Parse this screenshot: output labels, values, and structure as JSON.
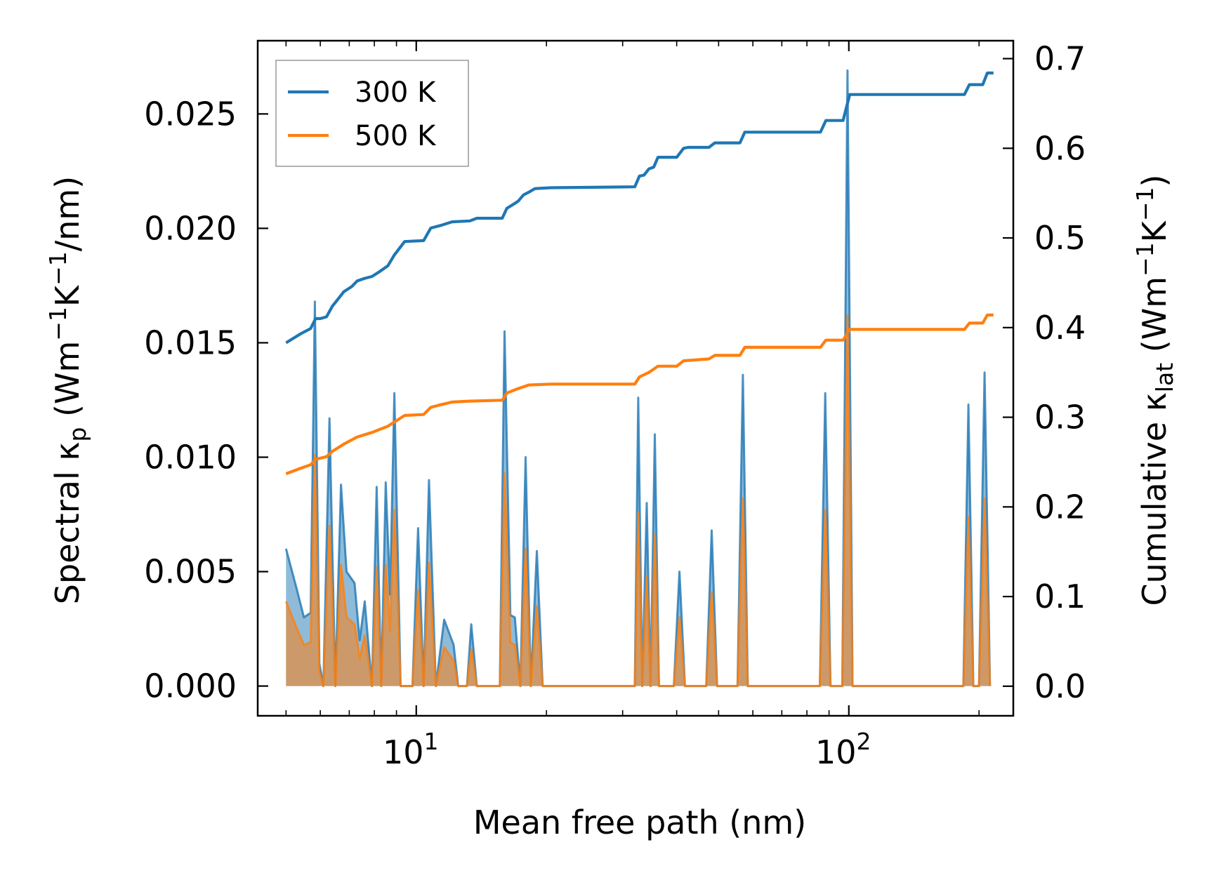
{
  "chart_data": {
    "type": "line",
    "xscale": "log",
    "xlim": [
      4.3,
      240
    ],
    "xlabel": "Mean free path (nm)",
    "ylabel_left": "Spectral κp (Wm⁻¹K⁻¹/nm)",
    "ylabel_left_parts": {
      "pre": "Spectral κ",
      "sub": "p",
      "post": " (Wm",
      "sup1": "−1",
      "mid": "K",
      "sup2": "−1",
      "end": "/nm)"
    },
    "ylabel_right": "Cumulative κlat (Wm⁻¹K⁻¹)",
    "ylabel_right_parts": {
      "pre": "Cumulative κ",
      "sub": "lat",
      "post": " (Wm",
      "sup1": "−1",
      "mid": "K",
      "sup2": "−1",
      "end": ")"
    },
    "ylim_left": [
      -0.0013,
      0.0282
    ],
    "ylim_right": [
      -0.033,
      0.72
    ],
    "left_ticks": [
      0.0,
      0.005,
      0.01,
      0.015,
      0.02,
      0.025
    ],
    "left_tick_labels": [
      "0.000",
      "0.005",
      "0.010",
      "0.015",
      "0.020",
      "0.025"
    ],
    "right_ticks": [
      0.0,
      0.1,
      0.2,
      0.3,
      0.4,
      0.5,
      0.6,
      0.7
    ],
    "right_tick_labels": [
      "0.0",
      "0.1",
      "0.2",
      "0.3",
      "0.4",
      "0.5",
      "0.6",
      "0.7"
    ],
    "x_major_ticks": [
      10,
      100
    ],
    "x_tick_labels": [
      {
        "base": "10",
        "exp": "1"
      },
      {
        "base": "10",
        "exp": "2"
      }
    ],
    "x_minor_ticks": [
      5,
      6,
      7,
      8,
      9,
      20,
      30,
      40,
      50,
      60,
      70,
      80,
      90,
      200
    ],
    "legend": {
      "position": "upper-left",
      "entries": [
        "300 K",
        "500 K"
      ]
    },
    "series": [
      {
        "name": "300 K",
        "color": "#1f77b4",
        "spectral": [
          [
            5.0,
            0.006
          ],
          [
            5.3,
            0.0042
          ],
          [
            5.5,
            0.003
          ],
          [
            5.7,
            0.0032
          ],
          [
            5.83,
            0.0168
          ],
          [
            5.97,
            0.001
          ],
          [
            6.1,
            0.0
          ],
          [
            6.3,
            0.0117
          ],
          [
            6.5,
            0.0
          ],
          [
            6.7,
            0.0088
          ],
          [
            6.9,
            0.005
          ],
          [
            7.2,
            0.0045
          ],
          [
            7.4,
            0.002
          ],
          [
            7.6,
            0.0037
          ],
          [
            7.9,
            0.0
          ],
          [
            8.1,
            0.0087
          ],
          [
            8.3,
            0.0
          ],
          [
            8.5,
            0.0089
          ],
          [
            8.7,
            0.004
          ],
          [
            8.9,
            0.0128
          ],
          [
            9.2,
            0.0
          ],
          [
            9.8,
            0.0
          ],
          [
            10.1,
            0.0069
          ],
          [
            10.4,
            0.0
          ],
          [
            10.7,
            0.009
          ],
          [
            11.1,
            0.0
          ],
          [
            11.6,
            0.0029
          ],
          [
            12.2,
            0.0018
          ],
          [
            12.5,
            0.0
          ],
          [
            13.1,
            0.0
          ],
          [
            13.4,
            0.0027
          ],
          [
            13.8,
            0.0
          ],
          [
            15.6,
            0.0
          ],
          [
            16.0,
            0.0155
          ],
          [
            16.5,
            0.0031
          ],
          [
            16.9,
            0.003
          ],
          [
            17.4,
            0.0
          ],
          [
            17.9,
            0.01
          ],
          [
            18.4,
            0.0
          ],
          [
            19.0,
            0.0059
          ],
          [
            19.6,
            0.0
          ],
          [
            32.0,
            0.0
          ],
          [
            32.6,
            0.0126
          ],
          [
            33.3,
            0.0
          ],
          [
            34.1,
            0.008
          ],
          [
            34.8,
            0.0
          ],
          [
            35.6,
            0.011
          ],
          [
            36.4,
            0.0
          ],
          [
            39.4,
            0.0
          ],
          [
            40.6,
            0.005
          ],
          [
            41.8,
            0.0
          ],
          [
            46.8,
            0.0
          ],
          [
            48.2,
            0.0068
          ],
          [
            49.6,
            0.0
          ],
          [
            55.3,
            0.0
          ],
          [
            56.9,
            0.0136
          ],
          [
            58.4,
            0.0
          ],
          [
            85.7,
            0.0
          ],
          [
            88.2,
            0.0128
          ],
          [
            90.7,
            0.0
          ],
          [
            96.6,
            0.0
          ],
          [
            99.3,
            0.0269
          ],
          [
            102.0,
            0.0
          ],
          [
            184,
            0.0
          ],
          [
            189,
            0.0123
          ],
          [
            194,
            0.0
          ],
          [
            200,
            0.0
          ],
          [
            206,
            0.0137
          ],
          [
            212,
            0.0
          ]
        ],
        "cumulative": [
          [
            5.0,
            0.383
          ],
          [
            5.4,
            0.393
          ],
          [
            5.7,
            0.399
          ],
          [
            5.85,
            0.41
          ],
          [
            6.0,
            0.41
          ],
          [
            6.2,
            0.412
          ],
          [
            6.4,
            0.424
          ],
          [
            6.6,
            0.432
          ],
          [
            6.8,
            0.44
          ],
          [
            7.1,
            0.446
          ],
          [
            7.3,
            0.452
          ],
          [
            7.6,
            0.455
          ],
          [
            7.9,
            0.457
          ],
          [
            8.2,
            0.462
          ],
          [
            8.6,
            0.469
          ],
          [
            8.9,
            0.481
          ],
          [
            9.4,
            0.496
          ],
          [
            10.4,
            0.497
          ],
          [
            10.8,
            0.511
          ],
          [
            11.4,
            0.514
          ],
          [
            12.1,
            0.518
          ],
          [
            13.3,
            0.519
          ],
          [
            13.8,
            0.522
          ],
          [
            15.8,
            0.522
          ],
          [
            16.2,
            0.533
          ],
          [
            16.7,
            0.537
          ],
          [
            17.2,
            0.541
          ],
          [
            17.7,
            0.548
          ],
          [
            18.2,
            0.551
          ],
          [
            18.8,
            0.555
          ],
          [
            20.5,
            0.556
          ],
          [
            32.0,
            0.557
          ],
          [
            32.8,
            0.569
          ],
          [
            33.6,
            0.57
          ],
          [
            34.5,
            0.577
          ],
          [
            35.4,
            0.579
          ],
          [
            36.2,
            0.59
          ],
          [
            40.0,
            0.59
          ],
          [
            41.5,
            0.6
          ],
          [
            42.5,
            0.601
          ],
          [
            47.5,
            0.601
          ],
          [
            49.0,
            0.606
          ],
          [
            56.0,
            0.606
          ],
          [
            57.5,
            0.618
          ],
          [
            86.0,
            0.618
          ],
          [
            88.5,
            0.631
          ],
          [
            97.0,
            0.631
          ],
          [
            100.5,
            0.66
          ],
          [
            185,
            0.66
          ],
          [
            190,
            0.671
          ],
          [
            204,
            0.671
          ],
          [
            209,
            0.684
          ],
          [
            216,
            0.684
          ]
        ]
      },
      {
        "name": "500 K",
        "color": "#ff7f0e",
        "spectral": [
          [
            5.0,
            0.0037
          ],
          [
            5.3,
            0.0025
          ],
          [
            5.5,
            0.0018
          ],
          [
            5.7,
            0.0019
          ],
          [
            5.83,
            0.0101
          ],
          [
            5.97,
            0.0006
          ],
          [
            6.1,
            0.0
          ],
          [
            6.3,
            0.007
          ],
          [
            6.5,
            0.0
          ],
          [
            6.7,
            0.0053
          ],
          [
            6.9,
            0.003
          ],
          [
            7.2,
            0.0027
          ],
          [
            7.4,
            0.0012
          ],
          [
            7.6,
            0.0022
          ],
          [
            7.9,
            0.0
          ],
          [
            8.1,
            0.0052
          ],
          [
            8.3,
            0.0
          ],
          [
            8.5,
            0.0053
          ],
          [
            8.7,
            0.0024
          ],
          [
            8.9,
            0.0077
          ],
          [
            9.2,
            0.0
          ],
          [
            9.8,
            0.0
          ],
          [
            10.1,
            0.0042
          ],
          [
            10.4,
            0.0
          ],
          [
            10.7,
            0.0054
          ],
          [
            11.1,
            0.0
          ],
          [
            11.6,
            0.0017
          ],
          [
            12.2,
            0.0011
          ],
          [
            12.5,
            0.0
          ],
          [
            13.1,
            0.0
          ],
          [
            13.4,
            0.0016
          ],
          [
            13.8,
            0.0
          ],
          [
            15.6,
            0.0
          ],
          [
            16.0,
            0.0093
          ],
          [
            16.5,
            0.0019
          ],
          [
            16.9,
            0.0018
          ],
          [
            17.4,
            0.0
          ],
          [
            17.9,
            0.006
          ],
          [
            18.4,
            0.0
          ],
          [
            19.0,
            0.0035
          ],
          [
            19.6,
            0.0
          ],
          [
            32.0,
            0.0
          ],
          [
            32.6,
            0.0076
          ],
          [
            33.3,
            0.0
          ],
          [
            34.1,
            0.0048
          ],
          [
            34.8,
            0.0
          ],
          [
            35.6,
            0.0066
          ],
          [
            36.4,
            0.0
          ],
          [
            39.4,
            0.0
          ],
          [
            40.6,
            0.003
          ],
          [
            41.8,
            0.0
          ],
          [
            46.8,
            0.0
          ],
          [
            48.2,
            0.0041
          ],
          [
            49.6,
            0.0
          ],
          [
            55.3,
            0.0
          ],
          [
            56.9,
            0.0082
          ],
          [
            58.4,
            0.0
          ],
          [
            85.7,
            0.0
          ],
          [
            88.2,
            0.0077
          ],
          [
            90.7,
            0.0
          ],
          [
            96.6,
            0.0
          ],
          [
            99.3,
            0.0162
          ],
          [
            102.0,
            0.0
          ],
          [
            184,
            0.0
          ],
          [
            189,
            0.0074
          ],
          [
            194,
            0.0
          ],
          [
            200,
            0.0
          ],
          [
            206,
            0.0082
          ],
          [
            212,
            0.0
          ]
        ],
        "cumulative": [
          [
            5.0,
            0.237
          ],
          [
            5.4,
            0.243
          ],
          [
            5.7,
            0.247
          ],
          [
            5.85,
            0.253
          ],
          [
            6.2,
            0.256
          ],
          [
            6.4,
            0.262
          ],
          [
            6.8,
            0.27
          ],
          [
            7.3,
            0.278
          ],
          [
            7.9,
            0.283
          ],
          [
            8.6,
            0.29
          ],
          [
            9.4,
            0.302
          ],
          [
            10.4,
            0.303
          ],
          [
            10.8,
            0.311
          ],
          [
            11.4,
            0.314
          ],
          [
            12.1,
            0.317
          ],
          [
            13.3,
            0.318
          ],
          [
            15.8,
            0.319
          ],
          [
            16.2,
            0.327
          ],
          [
            17.2,
            0.332
          ],
          [
            18.2,
            0.336
          ],
          [
            20.5,
            0.337
          ],
          [
            32.0,
            0.337
          ],
          [
            32.8,
            0.345
          ],
          [
            34.5,
            0.35
          ],
          [
            36.2,
            0.357
          ],
          [
            40.0,
            0.357
          ],
          [
            41.5,
            0.363
          ],
          [
            47.5,
            0.365
          ],
          [
            49.0,
            0.369
          ],
          [
            56.0,
            0.369
          ],
          [
            57.5,
            0.378
          ],
          [
            86.0,
            0.378
          ],
          [
            88.5,
            0.386
          ],
          [
            97.0,
            0.386
          ],
          [
            100.5,
            0.398
          ],
          [
            185,
            0.398
          ],
          [
            190,
            0.405
          ],
          [
            204,
            0.405
          ],
          [
            209,
            0.414
          ],
          [
            216,
            0.414
          ]
        ]
      }
    ]
  }
}
